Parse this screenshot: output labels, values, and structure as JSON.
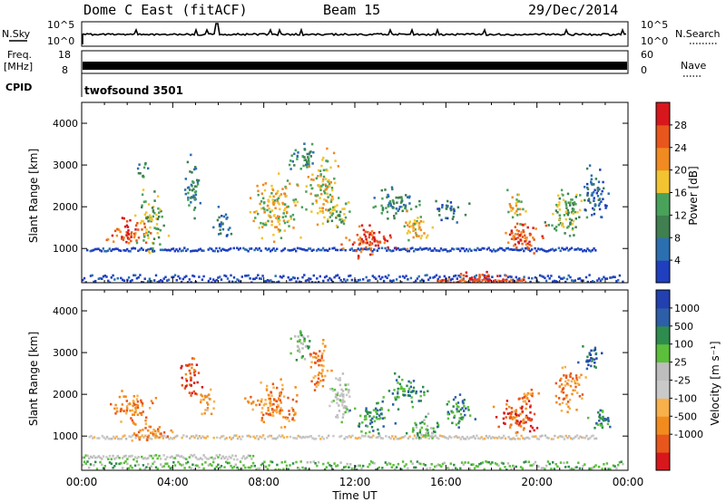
{
  "header": {
    "station": "Dome C East (fitACF)",
    "beam": "Beam 15",
    "date": "29/Dec/2014"
  },
  "status": {
    "nsky_label": "N.Sky",
    "nsearch_label": "N.Search",
    "freq_label": "Freq.",
    "freq_unit": "[MHz]",
    "nave_label": "Nave",
    "cpid_label": "CPID",
    "cpid_text": "twofsound 3501",
    "noise_ticks": [
      "10^5",
      "10^0"
    ],
    "freq_ticks": [
      "18",
      "8"
    ],
    "nave_ticks": [
      "60",
      "0"
    ]
  },
  "colors": {
    "power": [
      "#1f3fbf",
      "#2c6fb0",
      "#3f7f50",
      "#49a25a",
      "#f2c431",
      "#f08a21",
      "#e8561c",
      "#d8171c"
    ],
    "velocity": [
      "#d8171c",
      "#e8561c",
      "#f28b1e",
      "#f7b04a",
      "#c9c9c9",
      "#bdbdbd",
      "#5bbf3b",
      "#2e8c4e",
      "#2c5fa8",
      "#2240b0"
    ]
  },
  "chart_data": [
    {
      "type": "heatmap",
      "xlabel": "Time UT",
      "ylabel": "Slant Range [km]",
      "ylim": [
        180,
        4500
      ],
      "y_ticks": [
        "4000",
        "3000",
        "2000",
        "1000"
      ],
      "x_ticks": [
        "00:00",
        "04:00",
        "08:00",
        "12:00",
        "16:00",
        "20:00",
        "00:00"
      ],
      "colorbar": {
        "label": "Power [dB]",
        "ticks": [
          "28",
          "24",
          "20",
          "16",
          "12",
          "8",
          "4"
        ]
      },
      "blobs": [
        {
          "t": 2.0,
          "r": 1400,
          "w": 1.2,
          "h": 450,
          "level": 6
        },
        {
          "t": 3.0,
          "r": 1700,
          "w": 0.8,
          "h": 900,
          "level": 3
        },
        {
          "t": 2.6,
          "r": 2900,
          "w": 0.3,
          "h": 350,
          "level": 2
        },
        {
          "t": 4.8,
          "r": 2500,
          "w": 0.5,
          "h": 900,
          "level": 2
        },
        {
          "t": 6.2,
          "r": 1600,
          "w": 0.5,
          "h": 500,
          "level": 1
        },
        {
          "t": 8.5,
          "r": 2000,
          "w": 1.5,
          "h": 900,
          "level": 4
        },
        {
          "t": 9.7,
          "r": 3200,
          "w": 0.8,
          "h": 500,
          "level": 2
        },
        {
          "t": 10.6,
          "r": 2500,
          "w": 0.9,
          "h": 1100,
          "level": 4
        },
        {
          "t": 11.2,
          "r": 1800,
          "w": 1.0,
          "h": 400,
          "level": 3
        },
        {
          "t": 12.6,
          "r": 1200,
          "w": 1.6,
          "h": 450,
          "level": 6
        },
        {
          "t": 13.8,
          "r": 2100,
          "w": 1.3,
          "h": 500,
          "level": 2
        },
        {
          "t": 14.6,
          "r": 1500,
          "w": 0.9,
          "h": 500,
          "level": 4
        },
        {
          "t": 16.2,
          "r": 1950,
          "w": 0.9,
          "h": 350,
          "level": 1
        },
        {
          "t": 17.4,
          "r": 350,
          "w": 1.4,
          "h": 170,
          "level": 7
        },
        {
          "t": 19.3,
          "r": 1300,
          "w": 1.3,
          "h": 500,
          "level": 6
        },
        {
          "t": 19.0,
          "r": 2000,
          "w": 0.6,
          "h": 500,
          "level": 4
        },
        {
          "t": 21.3,
          "r": 1900,
          "w": 1.1,
          "h": 800,
          "level": 3
        },
        {
          "t": 22.5,
          "r": 2300,
          "w": 0.8,
          "h": 800,
          "level": 1
        }
      ],
      "bands": [
        {
          "r": 1000,
          "h": 80,
          "t0": 0.2,
          "t1": 22.6,
          "level": 0
        },
        {
          "r": 300,
          "h": 180,
          "t0": 0,
          "t1": 23.8,
          "level": 0
        },
        {
          "r": 250,
          "h": 80,
          "t0": 15.6,
          "t1": 19.5,
          "level": 6
        }
      ]
    },
    {
      "type": "heatmap",
      "xlabel": "Time UT",
      "ylabel": "Slant Range [km]",
      "ylim": [
        180,
        4500
      ],
      "y_ticks": [
        "4000",
        "3000",
        "2000",
        "1000"
      ],
      "x_ticks": [
        "00:00",
        "04:00",
        "08:00",
        "12:00",
        "16:00",
        "20:00",
        "00:00"
      ],
      "colorbar": {
        "label": "Velocity [m s⁻¹]",
        "ticks": [
          "1000",
          "500",
          "100",
          "25",
          "-25",
          "-100",
          "-500",
          "-1000"
        ]
      },
      "blobs": [
        {
          "t": 2.2,
          "r": 1700,
          "w": 1.4,
          "h": 500,
          "level": 2
        },
        {
          "t": 3.0,
          "r": 1100,
          "w": 1.2,
          "h": 350,
          "level": 2
        },
        {
          "t": 4.8,
          "r": 2400,
          "w": 0.6,
          "h": 700,
          "level": 1
        },
        {
          "t": 5.5,
          "r": 1800,
          "w": 0.6,
          "h": 400,
          "level": 3
        },
        {
          "t": 8.4,
          "r": 1800,
          "w": 1.6,
          "h": 700,
          "level": 2
        },
        {
          "t": 9.6,
          "r": 3200,
          "w": 0.7,
          "h": 500,
          "level": 6
        },
        {
          "t": 10.4,
          "r": 2700,
          "w": 0.6,
          "h": 900,
          "level": 2
        },
        {
          "t": 11.4,
          "r": 1900,
          "w": 0.8,
          "h": 800,
          "level": 5
        },
        {
          "t": 12.8,
          "r": 1500,
          "w": 1.2,
          "h": 500,
          "level": 7
        },
        {
          "t": 14.2,
          "r": 2100,
          "w": 1.2,
          "h": 500,
          "level": 7
        },
        {
          "t": 15.0,
          "r": 1200,
          "w": 1.0,
          "h": 400,
          "level": 6
        },
        {
          "t": 16.5,
          "r": 1600,
          "w": 1.0,
          "h": 500,
          "level": 7
        },
        {
          "t": 19.2,
          "r": 1500,
          "w": 1.4,
          "h": 600,
          "level": 1
        },
        {
          "t": 19.6,
          "r": 2000,
          "w": 0.5,
          "h": 400,
          "level": 2
        },
        {
          "t": 21.4,
          "r": 2200,
          "w": 0.9,
          "h": 700,
          "level": 2
        },
        {
          "t": 22.3,
          "r": 2800,
          "w": 0.6,
          "h": 500,
          "level": 8
        },
        {
          "t": 22.8,
          "r": 1400,
          "w": 0.8,
          "h": 400,
          "level": 7
        }
      ],
      "bands": [
        {
          "r": 1000,
          "h": 90,
          "t0": 0.3,
          "t1": 22.6,
          "level": 4
        },
        {
          "r": 320,
          "h": 200,
          "t0": 0,
          "t1": 23.8,
          "level": 6
        },
        {
          "r": 520,
          "h": 110,
          "t0": 0,
          "t1": 7.5,
          "level": 5
        }
      ]
    }
  ]
}
